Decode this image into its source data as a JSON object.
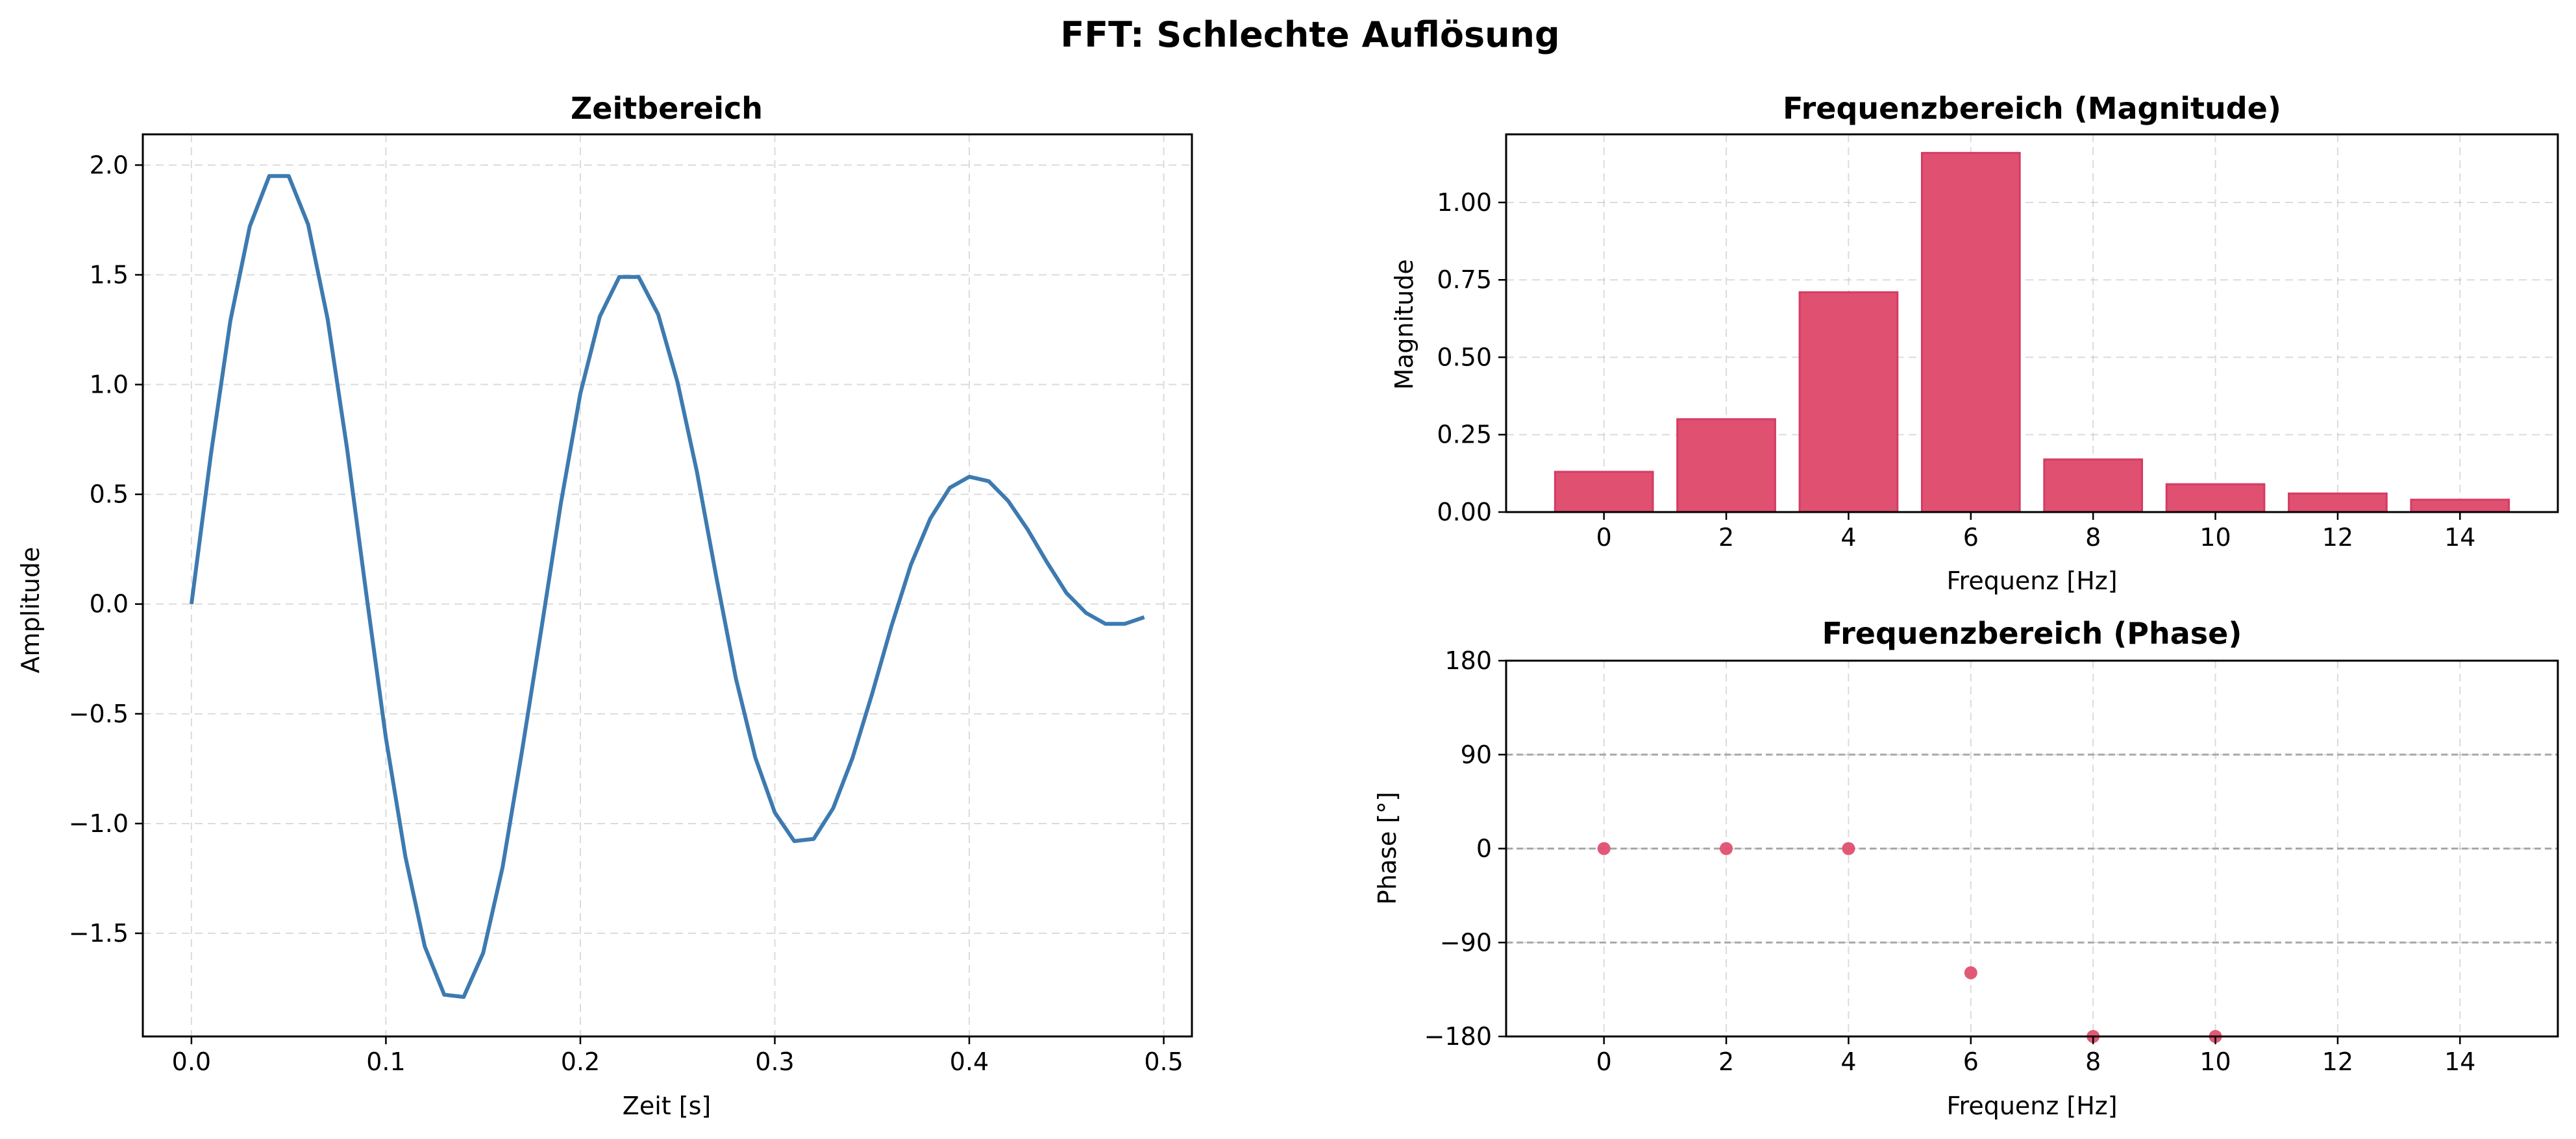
{
  "figure": {
    "suptitle": "FFT: Schlechte Auflösung"
  },
  "chart_data": [
    {
      "type": "line",
      "title": "Zeitbereich",
      "xlabel": "Zeit [s]",
      "ylabel": "Amplitude",
      "xlim": [
        -0.025,
        0.5145
      ],
      "ylim": [
        -1.97,
        2.14
      ],
      "xticks": [
        0.0,
        0.1,
        0.2,
        0.3,
        0.4,
        0.5
      ],
      "xtick_labels": [
        "0.0",
        "0.1",
        "0.2",
        "0.3",
        "0.4",
        "0.5"
      ],
      "yticks": [
        -1.5,
        -1.0,
        -0.5,
        0.0,
        0.5,
        1.0,
        1.5,
        2.0
      ],
      "ytick_labels": [
        "−1.5",
        "−1.0",
        "−0.5",
        "0.0",
        "0.5",
        "1.0",
        "1.5",
        "2.0"
      ],
      "grid": true,
      "series": [
        {
          "color": "#3d7ab0",
          "x": [
            0.0,
            0.01,
            0.02,
            0.03,
            0.04,
            0.05,
            0.06,
            0.07,
            0.08,
            0.09,
            0.1,
            0.11,
            0.12,
            0.13,
            0.14,
            0.15,
            0.16,
            0.17,
            0.18,
            0.19,
            0.2,
            0.21,
            0.22,
            0.23,
            0.24,
            0.25,
            0.26,
            0.27,
            0.28,
            0.29,
            0.3,
            0.31,
            0.32,
            0.33,
            0.34,
            0.35,
            0.36,
            0.37,
            0.38,
            0.39,
            0.4,
            0.41,
            0.42,
            0.43,
            0.44,
            0.45,
            0.46,
            0.47,
            0.48,
            0.49
          ],
          "y": [
            0.0,
            0.68,
            1.29,
            1.72,
            1.95,
            1.95,
            1.73,
            1.3,
            0.71,
            0.04,
            -0.61,
            -1.15,
            -1.56,
            -1.78,
            -1.79,
            -1.59,
            -1.2,
            -0.67,
            -0.11,
            0.46,
            0.96,
            1.31,
            1.49,
            1.49,
            1.32,
            1.01,
            0.6,
            0.12,
            -0.34,
            -0.7,
            -0.95,
            -1.08,
            -1.07,
            -0.93,
            -0.7,
            -0.41,
            -0.1,
            0.18,
            0.39,
            0.53,
            0.58,
            0.56,
            0.47,
            0.34,
            0.19,
            0.05,
            -0.04,
            -0.09,
            -0.09,
            -0.06
          ]
        }
      ]
    },
    {
      "type": "bar",
      "title": "Frequenzbereich (Magnitude)",
      "xlabel": "Frequenz [Hz]",
      "ylabel": "Magnitude",
      "xlim": [
        -1.6,
        15.6
      ],
      "ylim": [
        0.0,
        1.22
      ],
      "xticks": [
        0,
        2,
        4,
        6,
        8,
        10,
        12,
        14
      ],
      "xtick_labels": [
        "0",
        "2",
        "4",
        "6",
        "8",
        "10",
        "12",
        "14"
      ],
      "yticks": [
        0.0,
        0.25,
        0.5,
        0.75,
        1.0
      ],
      "ytick_labels": [
        "0.00",
        "0.25",
        "0.50",
        "0.75",
        "1.00"
      ],
      "grid": true,
      "bar_width": 1.6,
      "color": "#e05070",
      "edge_color": "#d43c64",
      "x": [
        0,
        2,
        4,
        6,
        8,
        10,
        12,
        14
      ],
      "values": [
        0.13,
        0.3,
        0.71,
        1.16,
        0.17,
        0.09,
        0.06,
        0.04
      ]
    },
    {
      "type": "scatter",
      "title": "Frequenzbereich (Phase)",
      "xlabel": "Frequenz [Hz]",
      "ylabel": "Phase [°]",
      "xlim": [
        -1.6,
        15.6
      ],
      "ylim": [
        -180,
        180
      ],
      "xticks": [
        0,
        2,
        4,
        6,
        8,
        10,
        12,
        14
      ],
      "xtick_labels": [
        "0",
        "2",
        "4",
        "6",
        "8",
        "10",
        "12",
        "14"
      ],
      "yticks": [
        -180,
        -90,
        0,
        90,
        180
      ],
      "ytick_labels": [
        "−180",
        "−90",
        "0",
        "90",
        "180"
      ],
      "grid": true,
      "reference_lines": [
        -90,
        0,
        90
      ],
      "color": "#e05070",
      "x": [
        0,
        2,
        4,
        6,
        8,
        10
      ],
      "y": [
        0,
        0,
        0,
        -119,
        -180,
        -180
      ]
    }
  ]
}
